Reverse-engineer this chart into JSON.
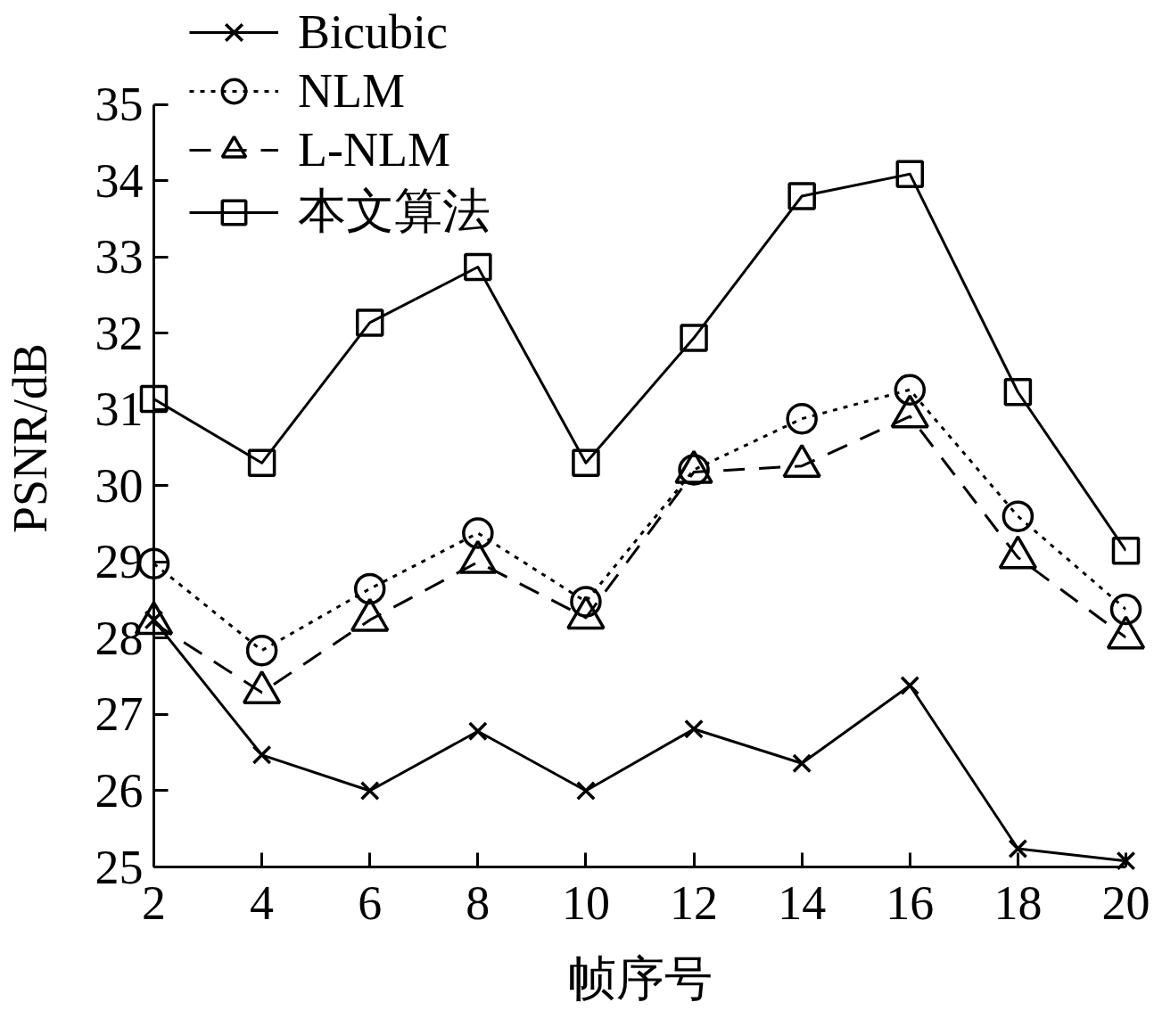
{
  "chart_data": {
    "type": "line",
    "xlabel": "帧序号",
    "ylabel": "PSNR/dB",
    "x": [
      2,
      4,
      6,
      8,
      10,
      12,
      14,
      16,
      18,
      20
    ],
    "xlim": [
      2,
      20
    ],
    "xticks": [
      2,
      4,
      6,
      8,
      10,
      12,
      14,
      16,
      18,
      20
    ],
    "ylim": [
      25,
      35
    ],
    "yticks": [
      25,
      26,
      27,
      28,
      29,
      30,
      31,
      32,
      33,
      34,
      35
    ],
    "grid": false,
    "legend": "top left",
    "series": [
      {
        "name": "Bicubic",
        "color": "#000000",
        "marker": "cross",
        "line_style": "solid",
        "values": [
          28.24,
          26.47,
          26.0,
          26.78,
          26.0,
          26.81,
          26.36,
          27.38,
          25.24,
          25.08
        ]
      },
      {
        "name": "NLM",
        "color": "#000000",
        "marker": "circle",
        "line_style": "dotted",
        "values": [
          28.98,
          27.84,
          28.65,
          29.38,
          28.48,
          30.21,
          30.88,
          31.26,
          29.6,
          28.38
        ]
      },
      {
        "name": "L-NLM",
        "color": "#000000",
        "marker": "triangle",
        "line_style": "dashed",
        "values": [
          28.2,
          27.29,
          28.24,
          29.0,
          28.27,
          30.18,
          30.26,
          30.91,
          29.06,
          28.01
        ]
      },
      {
        "name": "本文算法",
        "color": "#000000",
        "marker": "square",
        "line_style": "solid",
        "values": [
          31.14,
          30.3,
          32.14,
          32.87,
          30.3,
          31.94,
          33.8,
          34.09,
          31.23,
          29.15
        ]
      }
    ]
  }
}
